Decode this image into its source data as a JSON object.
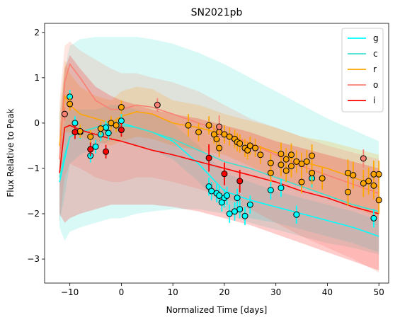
{
  "chart_data": {
    "type": "line",
    "title": "SN2021pb",
    "xlabel": "Normalized Time [days]",
    "ylabel": "Flux Relative to Peak",
    "xlim": [
      -14.9,
      51.9
    ],
    "ylim": [
      -3.53,
      2.2
    ],
    "xticks": [
      {
        "value": -10,
        "label": "−10"
      },
      0,
      10,
      20,
      30,
      40,
      50
    ],
    "yticks": [
      {
        "value": -3,
        "label": "−3"
      },
      {
        "value": -2,
        "label": "−2"
      },
      {
        "value": -1,
        "label": "−1"
      },
      0,
      1,
      2
    ],
    "legend": "upper right",
    "grid": false,
    "x": [
      -12,
      -11,
      -10,
      -8,
      -5,
      -2,
      0,
      3,
      6,
      10,
      15,
      20,
      25,
      30,
      35,
      40,
      45,
      50
    ],
    "series": [
      {
        "name": "g",
        "color": "#00ffff",
        "values": [
          -1.3,
          -0.8,
          -0.3,
          -0.2,
          -0.1,
          0.0,
          0.0,
          -0.1,
          -0.2,
          -0.4,
          -0.9,
          -1.5,
          -1.7,
          -1.85,
          -2.0,
          -2.15,
          -2.3,
          -2.5
        ],
        "lower": [
          -2.2,
          -1.6,
          -0.9,
          -0.7,
          -0.5,
          -0.4,
          -0.4,
          -0.5,
          -0.6,
          -0.8,
          -1.3,
          -1.9,
          -2.1,
          -2.2,
          -2.35,
          -2.5,
          -2.65,
          -2.85
        ],
        "upper": [
          -0.4,
          0.0,
          0.3,
          0.3,
          0.3,
          0.4,
          0.4,
          0.3,
          0.2,
          0.0,
          -0.5,
          -1.1,
          -1.3,
          -1.5,
          -1.65,
          -1.8,
          -1.95,
          -2.15
        ],
        "points_x": [
          -10,
          -9,
          -8,
          -6,
          -5,
          -4,
          -3,
          -2.5,
          -1,
          0,
          17,
          17.5,
          18.5,
          19,
          19.5,
          20,
          20.5,
          21,
          22,
          22.5,
          23,
          24,
          25,
          29,
          31,
          34,
          37,
          49
        ],
        "points_y": [
          0.58,
          0.0,
          -0.2,
          -0.72,
          -0.52,
          -0.25,
          -0.1,
          -0.22,
          -0.05,
          0.05,
          -1.4,
          -1.5,
          -1.55,
          -1.6,
          -1.75,
          -1.65,
          -1.6,
          -2.0,
          -1.95,
          -1.65,
          -1.9,
          -2.05,
          -1.8,
          -1.48,
          -1.43,
          -2.02,
          -1.22,
          -2.1
        ],
        "points_err": [
          0.15,
          0.15,
          0.15,
          0.15,
          0.15,
          0.15,
          0.15,
          0.15,
          0.15,
          0.15,
          0.2,
          0.2,
          0.2,
          0.2,
          0.2,
          0.2,
          0.2,
          0.2,
          0.2,
          0.2,
          0.2,
          0.2,
          0.2,
          0.2,
          0.2,
          0.2,
          0.2,
          0.2
        ]
      },
      {
        "name": "c",
        "color": "#40e0d0",
        "values": [
          -1.2,
          -0.7,
          -0.3,
          -0.2,
          -0.1,
          -0.05,
          -0.05,
          -0.1,
          -0.2,
          -0.35,
          -0.6,
          -0.85,
          -1.0,
          -1.2,
          -1.4,
          -1.6,
          -1.8,
          -1.95
        ],
        "lower": [
          -2.3,
          -2.6,
          -2.4,
          -2.3,
          -2.2,
          -2.1,
          -2.1,
          -2.0,
          -1.95,
          -1.9,
          -1.9,
          -2.0,
          -2.2,
          -2.35,
          -2.5,
          -2.65,
          -2.75,
          -2.9
        ],
        "upper": [
          0.2,
          1.2,
          1.7,
          1.85,
          1.9,
          1.9,
          1.9,
          1.9,
          1.85,
          1.75,
          1.55,
          1.3,
          1.0,
          0.7,
          0.4,
          0.1,
          -0.15,
          -0.4
        ],
        "points_x": [],
        "points_y": [],
        "points_err": []
      },
      {
        "name": "r",
        "color": "#ffa500",
        "values": [
          -0.5,
          0.6,
          0.4,
          0.2,
          0.1,
          0.0,
          0.15,
          0.25,
          0.2,
          0.0,
          -0.1,
          -0.25,
          -0.45,
          -0.65,
          -0.85,
          -1.0,
          -1.2,
          -1.4
        ],
        "lower": [
          -1.2,
          -0.2,
          -0.2,
          -0.3,
          -0.4,
          -0.5,
          -0.4,
          -0.3,
          -0.35,
          -0.5,
          -0.6,
          -0.7,
          -0.95,
          -1.2,
          -1.4,
          -1.6,
          -1.85,
          -2.1
        ],
        "upper": [
          0.2,
          1.4,
          1.1,
          0.8,
          0.6,
          0.5,
          0.7,
          0.8,
          0.75,
          0.5,
          0.4,
          0.2,
          0.05,
          -0.1,
          -0.3,
          -0.4,
          -0.55,
          -0.7
        ],
        "points_x": [
          -10,
          -8,
          -6,
          -4,
          -2,
          -1,
          0,
          13,
          15,
          17,
          18,
          18.5,
          19,
          19,
          20,
          21,
          22,
          22.5,
          23,
          24,
          24.5,
          25,
          26,
          27,
          29,
          29,
          31,
          31,
          32,
          32,
          33,
          33,
          34,
          35,
          35,
          36,
          37,
          37,
          39,
          44,
          44,
          45,
          47,
          48,
          49,
          49,
          50,
          50
        ],
        "points_y": [
          0.42,
          -0.18,
          -0.3,
          -0.12,
          0.0,
          -0.05,
          0.35,
          -0.05,
          -0.2,
          -0.05,
          -0.25,
          -0.35,
          -0.55,
          -0.2,
          -0.25,
          -0.3,
          -0.35,
          -0.42,
          -0.45,
          -0.55,
          -0.6,
          -0.5,
          -0.55,
          -0.7,
          -0.88,
          -1.1,
          -0.68,
          -0.92,
          -1.05,
          -0.8,
          -0.95,
          -0.7,
          -0.85,
          -0.9,
          -1.3,
          -0.85,
          -0.72,
          -1.1,
          -1.22,
          -1.1,
          -1.52,
          -1.15,
          -1.33,
          -1.28,
          -1.13,
          -1.38,
          -1.13,
          -1.7
        ],
        "points_err": [
          0.15,
          0.15,
          0.15,
          0.15,
          0.15,
          0.15,
          0.15,
          0.25,
          0.2,
          0.2,
          0.2,
          0.2,
          0.2,
          0.2,
          0.2,
          0.2,
          0.2,
          0.2,
          0.2,
          0.2,
          0.2,
          0.2,
          0.2,
          0.2,
          0.2,
          0.2,
          0.25,
          0.25,
          0.25,
          0.25,
          0.25,
          0.25,
          0.25,
          0.25,
          0.25,
          0.25,
          0.25,
          0.25,
          0.25,
          0.3,
          0.3,
          0.3,
          0.3,
          0.3,
          0.3,
          0.3,
          0.3,
          0.3
        ]
      },
      {
        "name": "o",
        "color": "#fa8072",
        "values": [
          -0.8,
          0.9,
          1.3,
          1.0,
          0.5,
          0.3,
          0.3,
          0.4,
          0.35,
          0.2,
          0.0,
          -0.2,
          -0.45,
          -0.7,
          -0.95,
          -1.15,
          -1.35,
          -1.55
        ],
        "lower": [
          -2.2,
          -1.2,
          -0.9,
          -1.0,
          -1.2,
          -1.3,
          -1.3,
          -1.2,
          -1.2,
          -1.3,
          -1.45,
          -1.65,
          -1.9,
          -2.2,
          -2.5,
          -2.75,
          -3.0,
          -3.3
        ],
        "upper": [
          0.5,
          1.7,
          1.8,
          1.6,
          1.4,
          1.2,
          1.1,
          1.1,
          1.0,
          0.9,
          0.7,
          0.4,
          0.1,
          -0.1,
          -0.3,
          -0.5,
          -0.65,
          -0.8
        ],
        "points_x": [
          -11,
          7,
          19,
          47
        ],
        "points_y": [
          0.2,
          0.4,
          -0.08,
          -0.78
        ],
        "points_err": [
          0.15,
          0.15,
          0.25,
          0.2
        ]
      },
      {
        "name": "i",
        "color": "#ff0000",
        "values": [
          -1.1,
          -0.1,
          -0.05,
          -0.15,
          -0.25,
          -0.35,
          -0.4,
          -0.5,
          -0.6,
          -0.7,
          -0.85,
          -1.0,
          -1.15,
          -1.3,
          -1.5,
          -1.65,
          -1.85,
          -2.0
        ],
        "lower": [
          -2.0,
          -2.2,
          -2.1,
          -2.0,
          -1.9,
          -1.8,
          -1.8,
          -1.8,
          -1.8,
          -1.85,
          -1.95,
          -2.1,
          -2.25,
          -2.45,
          -2.65,
          -2.85,
          -3.05,
          -3.25
        ],
        "upper": [
          -0.2,
          1.2,
          1.5,
          1.2,
          0.8,
          0.6,
          0.5,
          0.4,
          0.3,
          0.2,
          0.1,
          -0.05,
          -0.2,
          -0.4,
          -0.55,
          -0.7,
          -0.85,
          -1.0
        ],
        "points_x": [
          -9,
          -6,
          -3,
          0,
          17,
          20,
          23
        ],
        "points_y": [
          -0.2,
          -0.58,
          -0.63,
          -0.15,
          -0.77,
          -1.12,
          -1.28
        ],
        "points_err": [
          0.15,
          0.15,
          0.15,
          0.15,
          0.3,
          0.25,
          0.25
        ]
      }
    ]
  }
}
